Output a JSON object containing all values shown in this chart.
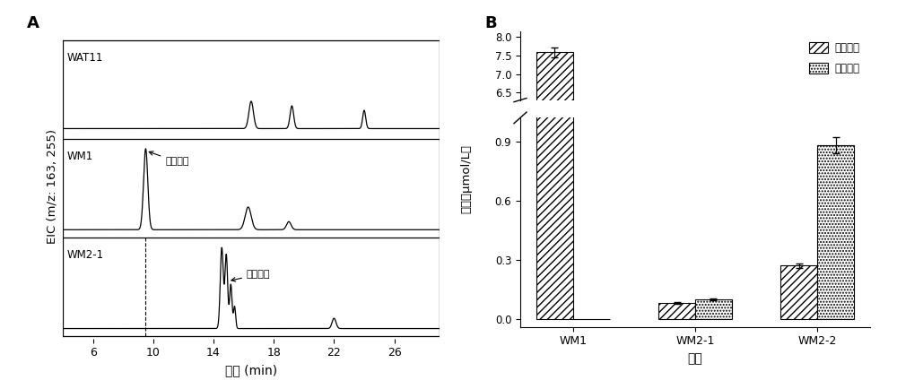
{
  "panel_A_label": "A",
  "panel_B_label": "B",
  "chromatogram": {
    "xlabel": "时间 (min)",
    "ylabel": "EIC (m/z: 163, 255)",
    "xlim": [
      4,
      29
    ],
    "xticks": [
      6,
      10,
      14,
      18,
      22,
      26
    ],
    "dashed_x": 9.5,
    "annotation_wm1": "对香豆酸",
    "annotation_wm21": "异甘草素",
    "label_wat11": "WAT11",
    "label_wm1": "WM1",
    "label_wm21": "WM2-1"
  },
  "bar_chart": {
    "categories": [
      "WM1",
      "WM2-1",
      "WM2-2"
    ],
    "xlabel": "菌株",
    "ylabel": "产量（μmol/L）",
    "legend_labels": [
      "对香豆酸",
      "异甘草素"
    ],
    "values_bar1": [
      7.58,
      0.08,
      0.27
    ],
    "values_bar2": [
      0.0,
      0.1,
      0.88
    ],
    "errors_bar1": [
      0.13,
      0.005,
      0.01
    ],
    "errors_bar2": [
      0.0,
      0.005,
      0.04
    ],
    "yticks_lower": [
      0.0,
      0.3,
      0.6,
      0.9
    ],
    "yticks_upper": [
      6.5,
      7.0,
      7.5,
      8.0
    ],
    "ylim_lower": [
      -0.04,
      1.02
    ],
    "ylim_upper": [
      6.3,
      8.15
    ],
    "bar_width": 0.3,
    "hatch1": "////",
    "hatch2": ".....",
    "edgecolor": "#000000"
  }
}
